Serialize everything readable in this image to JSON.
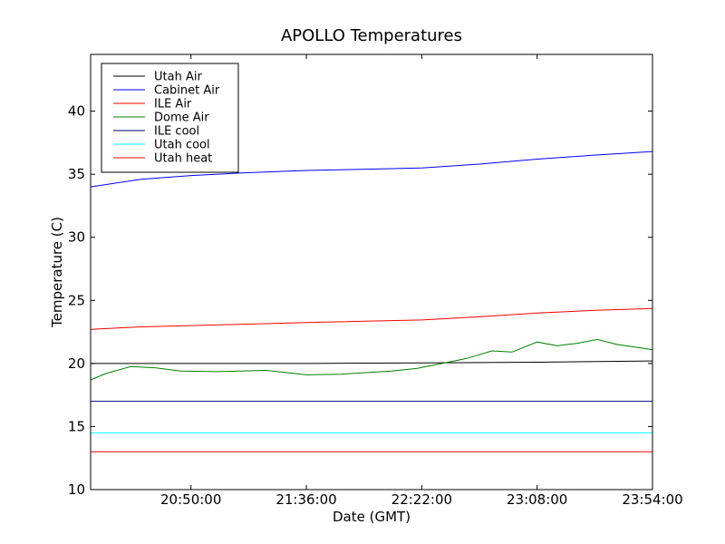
{
  "chart_data": {
    "type": "line",
    "title": "APOLLO Temperatures",
    "xlabel": "Date (GMT)",
    "ylabel": "Temperature (C)",
    "x_ticks": [
      "20:50:00",
      "21:36:00",
      "22:22:00",
      "23:08:00",
      "23:54:00"
    ],
    "x_tick_minutes": [
      1250,
      1296,
      1342,
      1388,
      1434
    ],
    "xlim_minutes": [
      1210,
      1434
    ],
    "ylim": [
      10,
      44.5
    ],
    "y_ticks": [
      10,
      15,
      20,
      25,
      30,
      35,
      40
    ],
    "grid": false,
    "legend_position": "top-left",
    "series": [
      {
        "name": "Utah Air",
        "color": "#000000",
        "x": [
          1210,
          1250,
          1296,
          1342,
          1388,
          1434
        ],
        "y": [
          20.0,
          20.0,
          20.0,
          20.05,
          20.1,
          20.2
        ]
      },
      {
        "name": "Cabinet Air",
        "color": "#0000ff",
        "x": [
          1210,
          1230,
          1250,
          1270,
          1296,
          1320,
          1342,
          1365,
          1388,
          1410,
          1434
        ],
        "y": [
          34.0,
          34.6,
          34.9,
          35.1,
          35.3,
          35.4,
          35.5,
          35.8,
          36.2,
          36.5,
          36.8
        ]
      },
      {
        "name": "ILE Air",
        "color": "#ff0000",
        "x": [
          1210,
          1230,
          1250,
          1296,
          1342,
          1365,
          1388,
          1410,
          1434
        ],
        "y": [
          22.7,
          22.9,
          23.0,
          23.25,
          23.45,
          23.7,
          24.0,
          24.2,
          24.35
        ]
      },
      {
        "name": "Dome Air",
        "color": "#008000",
        "x": [
          1210,
          1216,
          1226,
          1236,
          1246,
          1260,
          1280,
          1296,
          1310,
          1330,
          1340,
          1350,
          1360,
          1370,
          1378,
          1388,
          1396,
          1404,
          1412,
          1420,
          1434
        ],
        "y": [
          18.7,
          19.2,
          19.75,
          19.65,
          19.4,
          19.35,
          19.45,
          19.1,
          19.15,
          19.4,
          19.6,
          20.0,
          20.4,
          21.0,
          20.9,
          21.7,
          21.4,
          21.6,
          21.9,
          21.5,
          21.1
        ]
      },
      {
        "name": "ILE cool",
        "color": "#000080",
        "x": [
          1210,
          1434
        ],
        "y": [
          17.0,
          17.0
        ]
      },
      {
        "name": "Utah cool",
        "color": "#00ffff",
        "x": [
          1210,
          1434
        ],
        "y": [
          14.5,
          14.5
        ]
      },
      {
        "name": "Utah heat",
        "color": "#ff0000",
        "x": [
          1210,
          1434
        ],
        "y": [
          13.0,
          13.0
        ]
      }
    ]
  }
}
